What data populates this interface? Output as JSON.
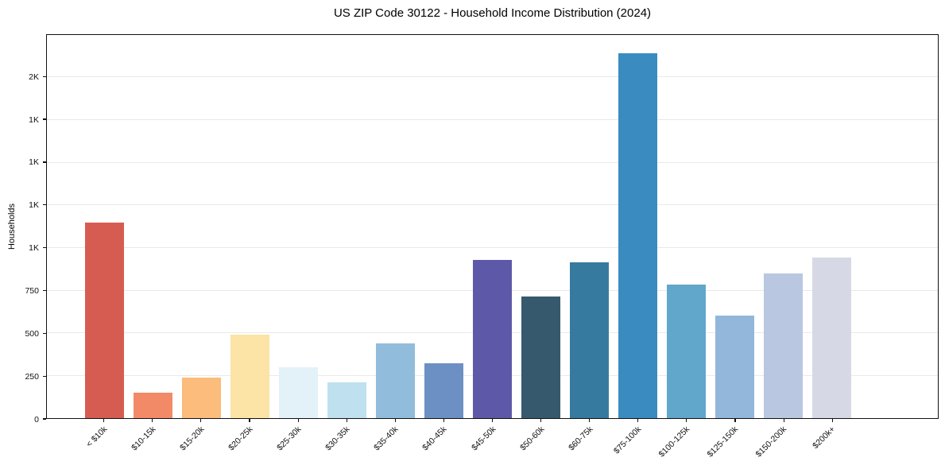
{
  "title": "US ZIP Code 30122 - Household Income Distribution (2024)",
  "chart_data": {
    "type": "bar",
    "title": "US ZIP Code 30122 - Household Income Distribution (2024)",
    "xlabel": "",
    "ylabel": "Households",
    "ylim": [
      0,
      2247
    ],
    "grid": "horizontal-light",
    "legend": "none",
    "frame": "full-box",
    "x_tick_rotation_deg": 45,
    "categories": [
      "< $10k",
      "$10-15k",
      "$15-20k",
      "$20-25k",
      "$25-30k",
      "$30-35k",
      "$35-40k",
      "$40-45k",
      "$45-50k",
      "$50-60k",
      "$60-75k",
      "$75-100k",
      "$100-125k",
      "$125-150k",
      "$150-200k",
      "$200k+"
    ],
    "values": [
      1146,
      147,
      239,
      488,
      298,
      212,
      440,
      321,
      928,
      712,
      913,
      2140,
      784,
      600,
      847,
      940
    ],
    "bar_colors": [
      "#d65c52",
      "#f28a68",
      "#fbbc7c",
      "#fce3a6",
      "#e3f1f8",
      "#bfe0ee",
      "#92bcdc",
      "#6c90c3",
      "#5d59a8",
      "#36596e",
      "#377a9f",
      "#3a8cc0",
      "#61a7cb",
      "#92b7da",
      "#b9c8e0",
      "#d7d8e5"
    ],
    "y_ticks": [
      {
        "value": 0,
        "label": "0"
      },
      {
        "value": 250,
        "label": "250"
      },
      {
        "value": 500,
        "label": "500"
      },
      {
        "value": 750,
        "label": "750"
      },
      {
        "value": 1000,
        "label": "1K"
      },
      {
        "value": 1250,
        "label": "1K"
      },
      {
        "value": 1500,
        "label": "1K"
      },
      {
        "value": 1750,
        "label": "1K"
      },
      {
        "value": 2000,
        "label": "2K"
      }
    ]
  }
}
